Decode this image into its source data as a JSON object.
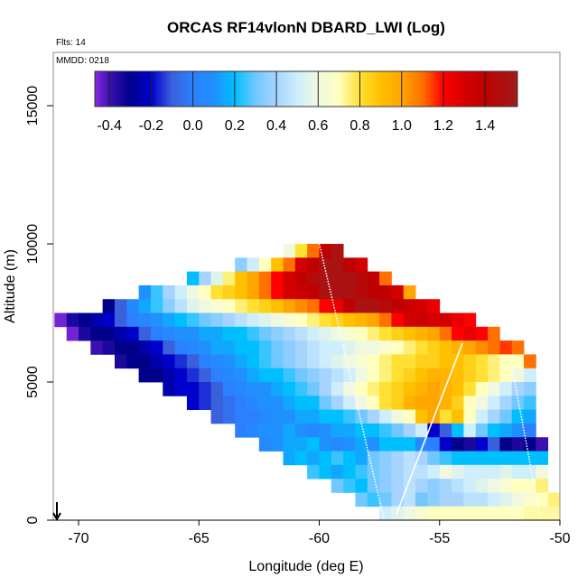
{
  "chart_data": {
    "type": "heatmap",
    "title": "ORCAS RF14vlonN DBARD_LWI (Log)",
    "annotations": {
      "flights": "Flts: 14",
      "date": "MMDD: 0218"
    },
    "xlabel": "Longitude (deg E)",
    "ylabel": "Altitude (m)",
    "xlim": [
      -71.05,
      -50
    ],
    "ylim": [
      0,
      16930
    ],
    "xticks": [
      -70,
      -65,
      -60,
      -55,
      -50
    ],
    "xtick_labels": [
      "-70",
      "-65",
      "-60",
      "-55",
      "-50"
    ],
    "yticks": [
      0,
      5000,
      10000,
      15000
    ],
    "ytick_labels": [
      "0",
      "5000",
      "10000",
      "15000"
    ],
    "grid": false,
    "cell_lon_step": 0.5,
    "cell_alt_step": 500,
    "rows": [
      {
        "alt": 9500,
        "lon_start": -61.5,
        "values": [
          0.6,
          0.8,
          1.1,
          1.4,
          1.5
        ]
      },
      {
        "alt": 9000,
        "lon_start": -63.5,
        "values": [
          0.35,
          0.5,
          0.7,
          0.9,
          1.1,
          1.3,
          1.4,
          1.5,
          1.5,
          1.4,
          1.3
        ]
      },
      {
        "alt": 8500,
        "lon_start": -65.5,
        "values": [
          0.2,
          0.4,
          0.55,
          0.75,
          0.9,
          1.0,
          1.1,
          1.2,
          1.3,
          1.4,
          1.45,
          1.5,
          1.5,
          1.5,
          1.45,
          1.4,
          1.1
        ]
      },
      {
        "alt": 8000,
        "lon_start": -67.5,
        "values": [
          0.1,
          0.25,
          0.4,
          0.5,
          0.6,
          0.7,
          0.8,
          0.85,
          0.9,
          1.0,
          1.1,
          1.2,
          1.3,
          1.35,
          1.4,
          1.5,
          1.5,
          1.5,
          1.45,
          1.4,
          1.4,
          1.3,
          1.0
        ]
      },
      {
        "alt": 7500,
        "lon_start": -69.0,
        "values": [
          -0.3,
          -0.1,
          0.05,
          0.15,
          0.25,
          0.35,
          0.45,
          0.55,
          0.6,
          0.65,
          0.7,
          0.75,
          0.8,
          0.85,
          0.9,
          1.0,
          1.05,
          1.1,
          1.2,
          1.25,
          1.4,
          1.5,
          1.5,
          1.45,
          1.4,
          1.35,
          1.3,
          1.25
        ]
      },
      {
        "alt": 7000,
        "lon_start": -71.0,
        "values": [
          -0.45,
          -0.35,
          -0.3,
          -0.25,
          -0.2,
          -0.1,
          0.0,
          0.05,
          0.1,
          0.15,
          0.2,
          0.25,
          0.3,
          0.35,
          0.4,
          0.45,
          0.5,
          0.55,
          0.6,
          0.65,
          0.7,
          0.75,
          0.8,
          0.85,
          0.9,
          0.95,
          1.0,
          1.1,
          1.2,
          1.3,
          1.35,
          1.3,
          1.3,
          1.25,
          1.2
        ]
      },
      {
        "alt": 6500,
        "lon_start": -70.5,
        "values": [
          -0.45,
          -0.35,
          -0.3,
          -0.3,
          -0.25,
          -0.2,
          -0.1,
          0.0,
          0.05,
          0.1,
          0.1,
          0.15,
          0.15,
          0.2,
          0.2,
          0.25,
          0.3,
          0.35,
          0.4,
          0.45,
          0.5,
          0.55,
          0.6,
          0.65,
          0.7,
          0.75,
          0.8,
          0.85,
          0.9,
          0.95,
          1.0,
          1.1,
          1.2,
          1.25,
          1.2,
          1.1
        ]
      },
      {
        "alt": 6000,
        "lon_start": -69.5,
        "values": [
          -0.4,
          -0.35,
          -0.3,
          -0.3,
          -0.25,
          -0.2,
          -0.1,
          0.0,
          0.05,
          0.1,
          0.15,
          0.15,
          0.2,
          0.2,
          0.25,
          0.3,
          0.35,
          0.4,
          0.45,
          0.5,
          0.5,
          0.55,
          0.6,
          0.6,
          0.65,
          0.7,
          0.75,
          0.8,
          0.85,
          0.9,
          0.95,
          1.0,
          1.05,
          1.1,
          1.15,
          1.1
        ]
      },
      {
        "alt": 5500,
        "lon_start": -68.5,
        "values": [
          -0.35,
          -0.3,
          -0.3,
          -0.25,
          -0.2,
          -0.15,
          -0.1,
          0.0,
          0.05,
          0.1,
          0.15,
          0.2,
          0.25,
          0.3,
          0.35,
          0.4,
          0.45,
          0.5,
          0.55,
          0.6,
          0.65,
          0.7,
          0.75,
          0.8,
          0.8,
          0.85,
          0.85,
          0.9,
          0.9,
          0.85,
          0.8,
          0.75,
          0.7,
          0.7,
          1.1
        ]
      },
      {
        "alt": 5000,
        "lon_start": -67.5,
        "values": [
          -0.3,
          -0.3,
          -0.25,
          -0.2,
          -0.15,
          -0.1,
          0.0,
          0.05,
          0.1,
          0.15,
          0.2,
          0.2,
          0.25,
          0.3,
          0.35,
          0.4,
          0.45,
          0.5,
          0.6,
          0.7,
          0.75,
          0.8,
          0.85,
          0.9,
          0.95,
          0.95,
          0.9,
          0.85,
          0.8,
          0.75,
          0.7,
          0.6,
          0.5
        ]
      },
      {
        "alt": 4500,
        "lon_start": -66.5,
        "values": [
          -0.25,
          -0.2,
          -0.2,
          -0.15,
          -0.1,
          0.0,
          0.05,
          0.1,
          0.1,
          0.15,
          0.2,
          0.25,
          0.3,
          0.4,
          0.5,
          0.6,
          0.7,
          0.75,
          0.8,
          0.85,
          0.9,
          0.95,
          1.0,
          0.95,
          0.9,
          0.8,
          0.7,
          0.6,
          0.5,
          0.4,
          0.35
        ]
      },
      {
        "alt": 4000,
        "lon_start": -65.5,
        "values": [
          -0.2,
          -0.15,
          -0.1,
          -0.05,
          0.0,
          0.05,
          0.1,
          0.1,
          0.15,
          0.2,
          0.2,
          0.3,
          0.4,
          0.5,
          0.6,
          0.7,
          0.8,
          0.85,
          0.95,
          1.0,
          1.0,
          0.95,
          0.85,
          0.7,
          0.6,
          0.5,
          0.4,
          0.3,
          0.25
        ]
      },
      {
        "alt": 3500,
        "lon_start": -64.5,
        "values": [
          -0.1,
          -0.05,
          0.0,
          0.0,
          0.05,
          0.1,
          0.1,
          0.15,
          0.15,
          0.2,
          0.2,
          0.25,
          0.3,
          0.4,
          0.5,
          0.6,
          0.7,
          0.9,
          1.0,
          0.8,
          0.9,
          0.7,
          0.5,
          0.4,
          0.3,
          0.2,
          0.15
        ]
      },
      {
        "alt": 3000,
        "lon_start": -63.5,
        "values": [
          0.0,
          0.05,
          0.1,
          0.1,
          0.15,
          0.1,
          0.05,
          0.1,
          0.15,
          0.15,
          0.2,
          0.2,
          0.25,
          0.3,
          0.4,
          0.5,
          -0.2,
          -0.1,
          0.2,
          0.5,
          0.3,
          0.2,
          0.15,
          0.1,
          0.0
        ]
      },
      {
        "alt": 2500,
        "lon_start": -62.5,
        "values": [
          0.05,
          0.1,
          0.15,
          0.15,
          0.2,
          0.1,
          0.05,
          0.1,
          0.15,
          0.1,
          0.2,
          0.2,
          0.2,
          0.05,
          0.0,
          -0.2,
          -0.3,
          -0.35,
          -0.2,
          -0.1,
          -0.3,
          -0.35,
          -0.3,
          -0.4
        ]
      },
      {
        "alt": 2000,
        "lon_start": -61.5,
        "values": [
          0.15,
          0.2,
          0.15,
          0.2,
          0.25,
          0.2,
          0.15,
          0.3,
          0.35,
          0.4,
          0.45,
          0.4,
          0.3,
          0.25,
          0.2,
          0.2,
          0.2,
          0.2,
          0.2,
          0.2,
          0.2,
          0.2
        ]
      },
      {
        "alt": 1500,
        "lon_start": -60.5,
        "values": [
          0.25,
          0.2,
          0.15,
          0.2,
          0.25,
          0.3,
          0.35,
          0.4,
          0.45,
          0.45,
          0.5,
          0.6,
          0.55,
          0.5,
          0.5,
          0.5,
          0.55,
          0.5,
          0.5,
          0.6
        ]
      },
      {
        "alt": 1000,
        "lon_start": -59.5,
        "values": [
          0.3,
          0.25,
          0.2,
          0.3,
          0.35,
          0.4,
          0.45,
          0.4,
          0.35,
          0.4,
          0.45,
          0.5,
          0.55,
          0.6,
          0.65,
          0.7,
          0.7,
          0.75
        ]
      },
      {
        "alt": 500,
        "lon_start": -58.5,
        "values": [
          0.3,
          0.25,
          0.3,
          0.4,
          0.45,
          0.3,
          0.35,
          0.4,
          0.4,
          0.45,
          0.45,
          0.5,
          0.55,
          0.6,
          0.65,
          0.7,
          0.75
        ]
      },
      {
        "alt": 0,
        "lon_start": -57.5,
        "values": [
          0.5,
          0.55,
          0.6,
          0.65,
          0.7,
          0.7,
          0.7,
          0.7,
          0.7,
          0.7,
          0.7,
          0.7,
          0.72,
          0.72,
          0.72
        ]
      }
    ],
    "flight_tracks": [
      {
        "style": "dotted",
        "points": [
          [
            -60.0,
            10000
          ],
          [
            -57.3,
            0
          ]
        ]
      },
      {
        "style": "solid",
        "points": [
          [
            -56.8,
            200
          ],
          [
            -54.05,
            6400
          ]
        ]
      },
      {
        "style": "dotted",
        "points": [
          [
            -52.0,
            5590
          ],
          [
            -50.8,
            0
          ]
        ]
      }
    ],
    "direction_arrow": {
      "lon": -70.9,
      "direction": "down"
    },
    "colorbar": {
      "range": [
        -0.47,
        1.555
      ],
      "ticks": [
        -0.4,
        -0.2,
        0.0,
        0.2,
        0.4,
        0.6,
        0.8,
        1.0,
        1.2,
        1.4
      ],
      "tick_labels": [
        "-0.4",
        "-0.2",
        "0.0",
        "0.2",
        "0.4",
        "0.6",
        "0.8",
        "1.0",
        "1.2",
        "1.4"
      ],
      "placement": "top",
      "stops": [
        [
          -0.47,
          "#8a2be2"
        ],
        [
          -0.4,
          "#3a10b0"
        ],
        [
          -0.3,
          "#00008b"
        ],
        [
          -0.2,
          "#0000cd"
        ],
        [
          -0.1,
          "#3a60dc"
        ],
        [
          0.0,
          "#2b80ff"
        ],
        [
          0.1,
          "#2090ff"
        ],
        [
          0.2,
          "#00bfff"
        ],
        [
          0.3,
          "#70c8ff"
        ],
        [
          0.4,
          "#a6d4ff"
        ],
        [
          0.5,
          "#cdeefa"
        ],
        [
          0.6,
          "#f0f8e0"
        ],
        [
          0.7,
          "#ffffc0"
        ],
        [
          0.8,
          "#ffe033"
        ],
        [
          0.9,
          "#ffc000"
        ],
        [
          1.0,
          "#ffa500"
        ],
        [
          1.1,
          "#ff7000"
        ],
        [
          1.2,
          "#ff0000"
        ],
        [
          1.3,
          "#d40000"
        ],
        [
          1.4,
          "#c00000"
        ],
        [
          1.555,
          "#a01c1c"
        ]
      ]
    }
  }
}
